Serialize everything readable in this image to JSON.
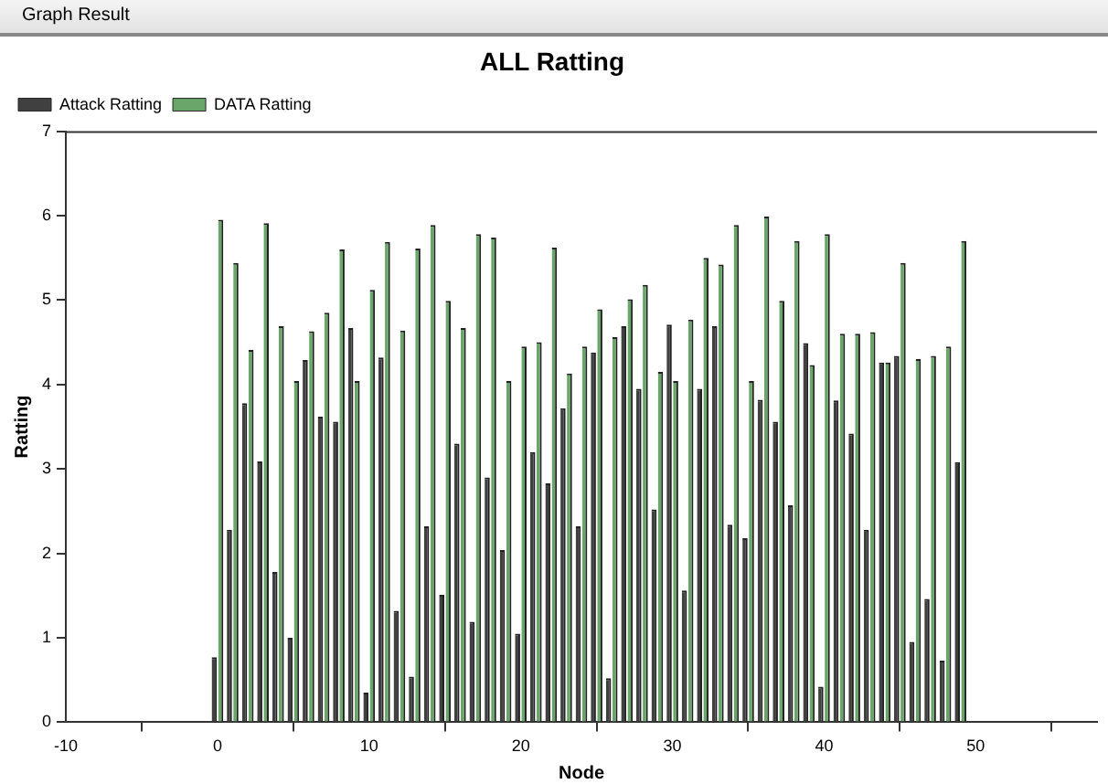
{
  "chart_data": {
    "type": "bar",
    "title": "ALL Ratting",
    "xlabel": "Node",
    "ylabel": "Ratting",
    "annotations": [
      "Graph Result"
    ],
    "x": [
      0,
      1,
      2,
      3,
      4,
      5,
      6,
      7,
      8,
      9,
      10,
      11,
      12,
      13,
      14,
      15,
      16,
      17,
      18,
      19,
      20,
      21,
      22,
      23,
      24,
      25,
      26,
      27,
      28,
      29,
      30,
      31,
      32,
      33,
      34,
      35,
      36,
      37,
      38,
      39,
      40,
      41,
      42,
      43,
      44,
      45,
      46,
      47,
      48,
      49
    ],
    "series": [
      {
        "name": "Attack Ratting",
        "color": "#404040",
        "values": [
          0.77,
          2.28,
          3.78,
          3.09,
          1.78,
          1.0,
          4.29,
          3.62,
          3.56,
          4.67,
          0.35,
          4.32,
          1.32,
          0.54,
          2.32,
          1.51,
          3.3,
          1.19,
          2.9,
          2.04,
          1.05,
          3.2,
          2.83,
          3.72,
          2.32,
          4.38,
          0.52,
          4.69,
          3.95,
          2.52,
          4.71,
          1.56,
          3.95,
          4.69,
          2.34,
          2.18,
          3.82,
          3.56,
          2.57,
          4.49,
          0.42,
          3.81,
          3.42,
          2.28,
          4.26,
          4.34,
          0.95,
          1.46,
          0.73,
          3.08
        ]
      },
      {
        "name": "DATA Ratting",
        "color": "#6aa56a",
        "values": [
          5.95,
          5.44,
          4.41,
          5.91,
          4.69,
          4.04,
          4.63,
          4.85,
          5.6,
          4.04,
          5.12,
          5.69,
          4.64,
          5.61,
          5.89,
          4.99,
          4.67,
          5.78,
          5.74,
          4.04,
          4.45,
          4.5,
          5.62,
          4.13,
          4.45,
          4.89,
          4.56,
          5.01,
          5.18,
          4.15,
          4.04,
          4.77,
          5.5,
          5.42,
          5.89,
          4.04,
          5.99,
          4.99,
          5.7,
          4.23,
          5.78,
          4.6,
          4.6,
          4.62,
          4.26,
          5.44,
          4.3,
          4.34,
          4.45,
          5.7
        ]
      }
    ],
    "xlim": [
      -10,
      58
    ],
    "xticks": [
      -10,
      0,
      10,
      20,
      30,
      40,
      50
    ],
    "ylim": [
      0,
      7
    ],
    "yticks": [
      0,
      1,
      2,
      3,
      4,
      5,
      6,
      7
    ],
    "grid": false,
    "legend": "top left"
  }
}
